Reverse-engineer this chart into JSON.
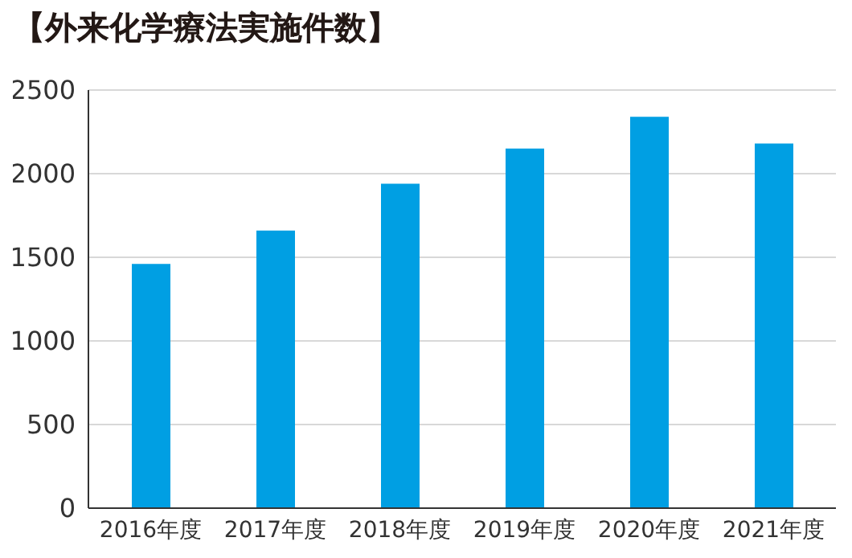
{
  "chart_data": {
    "type": "bar",
    "title": "【外来化学療法実施件数】",
    "categories": [
      "2016年度",
      "2017年度",
      "2018年度",
      "2019年度",
      "2020年度",
      "2021年度"
    ],
    "values": [
      1460,
      1660,
      1940,
      2150,
      2340,
      2180
    ],
    "color": "#009fe3",
    "ylim": [
      0,
      2500
    ],
    "yticks": [
      0,
      500,
      1000,
      1500,
      2000,
      2500
    ],
    "grid": "y"
  }
}
